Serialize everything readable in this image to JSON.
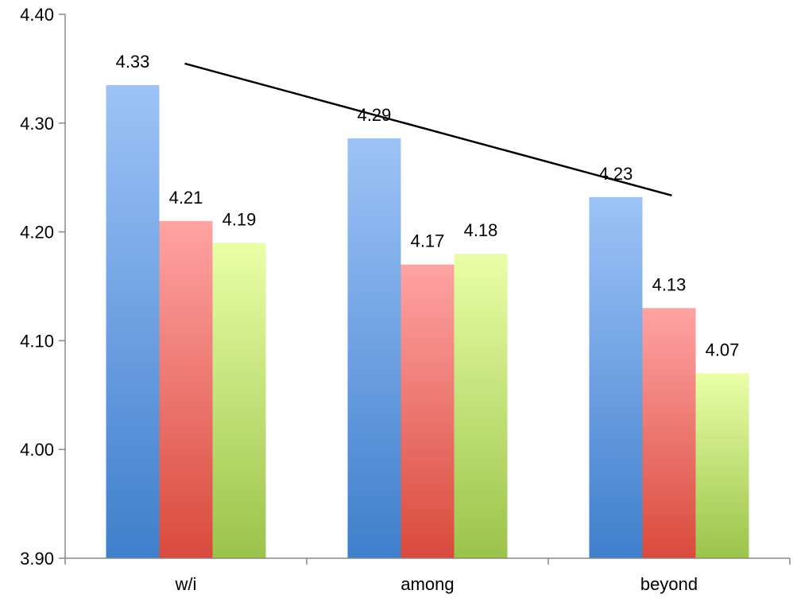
{
  "chart_data": {
    "type": "bar",
    "categories": [
      "w/i",
      "among",
      "beyond"
    ],
    "series": [
      {
        "values": [
          4.335,
          4.286,
          4.232
        ],
        "labels": [
          "4.33",
          "4.29",
          "4.23"
        ],
        "color_top": "#9dc3f7",
        "color_bottom": "#3f7fcc"
      },
      {
        "values": [
          4.21,
          4.17,
          4.13
        ],
        "labels": [
          "4.21",
          "4.17",
          "4.13"
        ],
        "color_top": "#ffa3a3",
        "color_bottom": "#d94a3c"
      },
      {
        "values": [
          4.19,
          4.18,
          4.07
        ],
        "labels": [
          "4.19",
          "4.18",
          "4.07"
        ],
        "color_top": "#e9ffa6",
        "color_bottom": "#9bc34a"
      }
    ],
    "ylim": [
      3.9,
      4.4
    ],
    "yticks": [
      "3.90",
      "4.00",
      "4.10",
      "4.20",
      "4.30",
      "4.40"
    ],
    "trend_line": {
      "x_start_category": 0,
      "x_end_category": 2,
      "y_start": 4.335,
      "y_end": 4.232
    },
    "title": "",
    "xlabel": "",
    "ylabel": "",
    "grid": false,
    "legend": "none"
  }
}
